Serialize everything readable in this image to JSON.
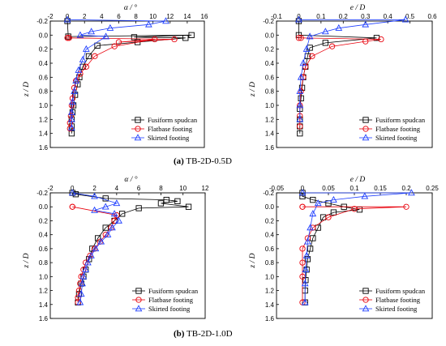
{
  "captions": [
    {
      "label": "(a)",
      "text": "TB-2D-0.5D"
    },
    {
      "label": "(b)",
      "text": "TB-2D-1.0D"
    }
  ],
  "colors": {
    "fusiform": "#000000",
    "flatbase": "#e8000b",
    "skirted": "#1f3fff"
  },
  "chart_data": [
    {
      "type": "line",
      "xlabel": "α / °",
      "ylabel": "z / D",
      "xlim": [
        -2,
        16
      ],
      "ylim": [
        1.6,
        -0.2
      ],
      "xticks": [
        -2,
        0,
        2,
        4,
        6,
        8,
        10,
        12,
        14,
        16
      ],
      "yticks": [
        -0.2,
        0.0,
        0.2,
        0.4,
        0.6,
        0.8,
        1.0,
        1.2,
        1.4,
        1.6
      ],
      "x_axis_position": "top",
      "legend_position": "bottom-right",
      "series": [
        {
          "name": "Fusiform spudcan",
          "marker": "square",
          "color": "#000000",
          "x": [
            0.0,
            0.1,
            14.5,
            7.8,
            13.8,
            8.2,
            3.5,
            2.5,
            1.8,
            1.4,
            1.2,
            0.9,
            0.7,
            0.6,
            0.5,
            0.5,
            0.5
          ],
          "y": [
            -0.2,
            0.02,
            0.0,
            0.03,
            0.04,
            0.1,
            0.15,
            0.3,
            0.45,
            0.6,
            0.7,
            0.85,
            1.0,
            1.1,
            1.2,
            1.3,
            1.4
          ]
        },
        {
          "name": "Flatbase footing",
          "marker": "circle",
          "color": "#e8000b",
          "x": [
            0.0,
            0.2,
            12.5,
            6.0,
            10.2,
            5.5,
            3.2,
            2.2,
            1.5,
            1.0,
            0.8,
            0.6,
            0.5,
            0.4,
            0.3,
            0.3
          ],
          "y": [
            0.04,
            0.04,
            0.06,
            0.1,
            0.06,
            0.16,
            0.3,
            0.45,
            0.55,
            0.65,
            0.75,
            0.9,
            1.0,
            1.15,
            1.25,
            1.33
          ]
        },
        {
          "name": "Skirted footing",
          "marker": "triangle",
          "color": "#1f3fff",
          "x": [
            0.0,
            11.5,
            9.5,
            5.0,
            2.8,
            1.5,
            4.5,
            2.2,
            1.8,
            1.3,
            1.0,
            0.8,
            0.6,
            0.5,
            0.5,
            0.5
          ],
          "y": [
            -0.22,
            -0.2,
            -0.15,
            -0.1,
            -0.05,
            0.0,
            0.02,
            0.2,
            0.35,
            0.5,
            0.65,
            0.8,
            0.95,
            1.1,
            1.2,
            1.32
          ]
        }
      ]
    },
    {
      "type": "line",
      "xlabel": "e / D",
      "ylabel": "z / D",
      "xlim": [
        -0.1,
        0.6
      ],
      "ylim": [
        1.6,
        -0.2
      ],
      "xticks": [
        -0.1,
        0.0,
        0.1,
        0.2,
        0.3,
        0.4,
        0.5,
        0.6
      ],
      "yticks": [
        -0.2,
        0.0,
        0.2,
        0.4,
        0.6,
        0.8,
        1.0,
        1.2,
        1.4,
        1.6
      ],
      "x_axis_position": "top",
      "legend_position": "bottom-right",
      "series": [
        {
          "name": "Fusiform spudcan",
          "marker": "square",
          "color": "#000000",
          "x": [
            0.0,
            0.0,
            0.35,
            0.12,
            0.05,
            0.04,
            0.03,
            0.02,
            0.015,
            0.01,
            0.005,
            0.005,
            0.005,
            0.005
          ],
          "y": [
            -0.2,
            0.0,
            0.04,
            0.11,
            0.18,
            0.3,
            0.45,
            0.6,
            0.75,
            0.9,
            1.05,
            1.2,
            1.3,
            1.4
          ]
        },
        {
          "name": "Flatbase footing",
          "marker": "circle",
          "color": "#e8000b",
          "x": [
            0.0,
            0.01,
            0.37,
            0.3,
            0.15,
            0.06,
            0.03,
            0.02,
            0.01,
            0.005,
            0.005,
            0.005
          ],
          "y": [
            0.04,
            0.04,
            0.06,
            0.09,
            0.16,
            0.3,
            0.45,
            0.6,
            0.8,
            1.0,
            1.15,
            1.3
          ]
        },
        {
          "name": "Skirted footing",
          "marker": "triangle",
          "color": "#1f3fff",
          "x": [
            0.0,
            0.48,
            0.3,
            0.18,
            0.12,
            0.05,
            0.035,
            0.02,
            0.01,
            0.005,
            0.005,
            0.005
          ],
          "y": [
            -0.22,
            -0.22,
            -0.15,
            -0.1,
            -0.05,
            0.02,
            0.2,
            0.4,
            0.6,
            0.8,
            1.0,
            1.2
          ]
        }
      ]
    },
    {
      "type": "line",
      "xlabel": "α / °",
      "ylabel": "z / D",
      "xlim": [
        -2,
        12
      ],
      "ylim": [
        1.6,
        -0.2
      ],
      "xticks": [
        -2,
        0,
        2,
        4,
        6,
        8,
        10,
        12
      ],
      "yticks": [
        -0.2,
        0.0,
        0.2,
        0.4,
        0.6,
        0.8,
        1.0,
        1.2,
        1.4,
        1.6
      ],
      "x_axis_position": "top",
      "legend_position": "bottom-right",
      "series": [
        {
          "name": "Fusiform spudcan",
          "marker": "square",
          "color": "#000000",
          "x": [
            0.0,
            0.3,
            3.0,
            8.5,
            9.5,
            8.0,
            10.5,
            6.0,
            4.5,
            3.8,
            3.0,
            2.3,
            1.8,
            1.5,
            1.2,
            1.0,
            0.8,
            0.6,
            0.5
          ],
          "y": [
            -0.2,
            -0.18,
            -0.12,
            -0.1,
            -0.08,
            -0.05,
            0.0,
            0.02,
            0.1,
            0.2,
            0.3,
            0.45,
            0.6,
            0.75,
            0.9,
            1.0,
            1.1,
            1.25,
            1.37
          ]
        },
        {
          "name": "Flatbase footing",
          "marker": "circle",
          "color": "#e8000b",
          "x": [
            0.0,
            0.0,
            4.0,
            3.8,
            3.5,
            3.0,
            2.5,
            2.0,
            1.6,
            1.2,
            1.0,
            0.8,
            0.7,
            0.6,
            0.5,
            0.5
          ],
          "y": [
            0.0,
            0.0,
            0.12,
            0.2,
            0.3,
            0.4,
            0.5,
            0.6,
            0.7,
            0.8,
            0.9,
            1.0,
            1.1,
            1.2,
            1.3,
            1.37
          ]
        },
        {
          "name": "Skirted footing",
          "marker": "triangle",
          "color": "#1f3fff",
          "x": [
            0.0,
            2.0,
            4.0,
            3.0,
            2.0,
            3.8,
            4.2,
            3.6,
            3.2,
            2.6,
            2.1,
            1.7,
            1.4,
            1.2,
            1.0,
            0.9,
            0.8,
            0.7
          ],
          "y": [
            -0.2,
            -0.15,
            -0.05,
            0.0,
            0.05,
            0.1,
            0.2,
            0.3,
            0.4,
            0.5,
            0.6,
            0.7,
            0.8,
            0.9,
            1.0,
            1.1,
            1.25,
            1.37
          ]
        }
      ]
    },
    {
      "type": "line",
      "xlabel": "e / D",
      "ylabel": "z / D",
      "xlim": [
        -0.05,
        0.25
      ],
      "ylim": [
        1.6,
        -0.2
      ],
      "xticks": [
        -0.05,
        0.0,
        0.05,
        0.1,
        0.15,
        0.2,
        0.25
      ],
      "yticks": [
        -0.2,
        0.0,
        0.2,
        0.4,
        0.6,
        0.8,
        1.0,
        1.2,
        1.4,
        1.6
      ],
      "x_axis_position": "top",
      "legend_position": "bottom-right",
      "series": [
        {
          "name": "Fusiform spudcan",
          "marker": "square",
          "color": "#000000",
          "x": [
            0.0,
            0.0,
            0.02,
            0.05,
            0.08,
            0.11,
            0.06,
            0.04,
            0.03,
            0.02,
            0.015,
            0.01,
            0.008,
            0.006,
            0.005,
            0.005
          ],
          "y": [
            -0.2,
            -0.15,
            -0.1,
            -0.05,
            0.0,
            0.04,
            0.08,
            0.15,
            0.3,
            0.45,
            0.6,
            0.75,
            0.9,
            1.05,
            1.2,
            1.37
          ]
        },
        {
          "name": "Flatbase footing",
          "marker": "circle",
          "color": "#e8000b",
          "x": [
            0.0,
            0.0,
            0.2,
            0.1,
            0.05,
            0.02,
            0.01,
            0.0,
            0.0,
            0.0,
            0.0
          ],
          "y": [
            0.0,
            0.0,
            0.0,
            0.03,
            0.15,
            0.3,
            0.45,
            0.6,
            0.8,
            1.0,
            1.37
          ]
        },
        {
          "name": "Skirted footing",
          "marker": "triangle",
          "color": "#1f3fff",
          "x": [
            0.0,
            0.21,
            0.12,
            0.06,
            0.03,
            0.02,
            0.015,
            0.01,
            0.008,
            0.006,
            0.005,
            0.005
          ],
          "y": [
            -0.2,
            -0.2,
            -0.15,
            -0.1,
            -0.05,
            0.1,
            0.3,
            0.5,
            0.7,
            0.9,
            1.1,
            1.37
          ]
        }
      ]
    }
  ]
}
